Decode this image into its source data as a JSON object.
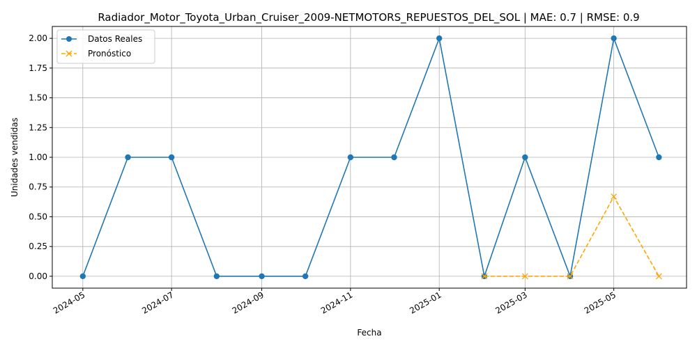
{
  "chart_data": {
    "type": "line",
    "title": "Radiador_Motor_Toyota_Urban_Cruiser_2009-NETMOTORS_REPUESTOS_DEL_SOL | MAE: 0.7 | RMSE: 0.9",
    "xlabel": "Fecha",
    "ylabel": "Unidades vendidas",
    "x_ticks": [
      "2024-05",
      "2024-07",
      "2024-09",
      "2024-11",
      "2025-01",
      "2025-03",
      "2025-05"
    ],
    "y_ticks": [
      "0.00",
      "0.25",
      "0.50",
      "0.75",
      "1.00",
      "1.25",
      "1.50",
      "1.75",
      "2.00"
    ],
    "ylim": [
      -0.1,
      2.1
    ],
    "xlim": [
      "2024-04-10",
      "2025-06-20"
    ],
    "grid": true,
    "legend_position": "upper-left",
    "series": [
      {
        "name": "Datos Reales",
        "color": "#1f77b4",
        "marker": "circle",
        "linestyle": "solid",
        "x": [
          "2024-05-01",
          "2024-06-01",
          "2024-07-01",
          "2024-08-01",
          "2024-09-01",
          "2024-10-01",
          "2024-11-01",
          "2024-12-01",
          "2025-01-01",
          "2025-02-01",
          "2025-03-01",
          "2025-04-01",
          "2025-05-01",
          "2025-06-01"
        ],
        "values": [
          0,
          1,
          1,
          0,
          0,
          0,
          1,
          1,
          2,
          0,
          1,
          0,
          2,
          1
        ]
      },
      {
        "name": "Pronóstico",
        "color": "#ffa500",
        "marker": "x",
        "linestyle": "dashed",
        "x": [
          "2025-02-01",
          "2025-03-01",
          "2025-04-01",
          "2025-05-01",
          "2025-06-01"
        ],
        "values": [
          0,
          0,
          0,
          0.67,
          0
        ]
      }
    ]
  }
}
